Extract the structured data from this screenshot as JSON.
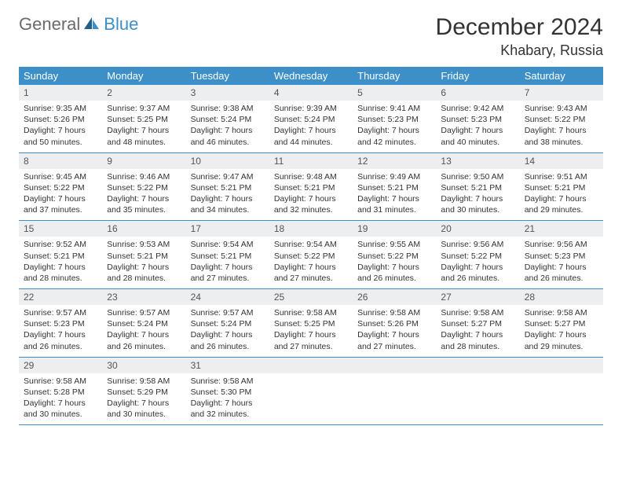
{
  "logo": {
    "word1": "General",
    "word2": "Blue"
  },
  "title": "December 2024",
  "location": "Khabary, Russia",
  "colors": {
    "header_bg": "#3d8fc7",
    "header_text": "#ffffff",
    "daynum_bg": "#eceeef",
    "border": "#3d8fc7",
    "body_bg": "#ffffff",
    "text": "#333333"
  },
  "weekdays": [
    "Sunday",
    "Monday",
    "Tuesday",
    "Wednesday",
    "Thursday",
    "Friday",
    "Saturday"
  ],
  "weeks": [
    [
      {
        "n": "1",
        "sr": "Sunrise: 9:35 AM",
        "ss": "Sunset: 5:26 PM",
        "d1": "Daylight: 7 hours",
        "d2": "and 50 minutes."
      },
      {
        "n": "2",
        "sr": "Sunrise: 9:37 AM",
        "ss": "Sunset: 5:25 PM",
        "d1": "Daylight: 7 hours",
        "d2": "and 48 minutes."
      },
      {
        "n": "3",
        "sr": "Sunrise: 9:38 AM",
        "ss": "Sunset: 5:24 PM",
        "d1": "Daylight: 7 hours",
        "d2": "and 46 minutes."
      },
      {
        "n": "4",
        "sr": "Sunrise: 9:39 AM",
        "ss": "Sunset: 5:24 PM",
        "d1": "Daylight: 7 hours",
        "d2": "and 44 minutes."
      },
      {
        "n": "5",
        "sr": "Sunrise: 9:41 AM",
        "ss": "Sunset: 5:23 PM",
        "d1": "Daylight: 7 hours",
        "d2": "and 42 minutes."
      },
      {
        "n": "6",
        "sr": "Sunrise: 9:42 AM",
        "ss": "Sunset: 5:23 PM",
        "d1": "Daylight: 7 hours",
        "d2": "and 40 minutes."
      },
      {
        "n": "7",
        "sr": "Sunrise: 9:43 AM",
        "ss": "Sunset: 5:22 PM",
        "d1": "Daylight: 7 hours",
        "d2": "and 38 minutes."
      }
    ],
    [
      {
        "n": "8",
        "sr": "Sunrise: 9:45 AM",
        "ss": "Sunset: 5:22 PM",
        "d1": "Daylight: 7 hours",
        "d2": "and 37 minutes."
      },
      {
        "n": "9",
        "sr": "Sunrise: 9:46 AM",
        "ss": "Sunset: 5:22 PM",
        "d1": "Daylight: 7 hours",
        "d2": "and 35 minutes."
      },
      {
        "n": "10",
        "sr": "Sunrise: 9:47 AM",
        "ss": "Sunset: 5:21 PM",
        "d1": "Daylight: 7 hours",
        "d2": "and 34 minutes."
      },
      {
        "n": "11",
        "sr": "Sunrise: 9:48 AM",
        "ss": "Sunset: 5:21 PM",
        "d1": "Daylight: 7 hours",
        "d2": "and 32 minutes."
      },
      {
        "n": "12",
        "sr": "Sunrise: 9:49 AM",
        "ss": "Sunset: 5:21 PM",
        "d1": "Daylight: 7 hours",
        "d2": "and 31 minutes."
      },
      {
        "n": "13",
        "sr": "Sunrise: 9:50 AM",
        "ss": "Sunset: 5:21 PM",
        "d1": "Daylight: 7 hours",
        "d2": "and 30 minutes."
      },
      {
        "n": "14",
        "sr": "Sunrise: 9:51 AM",
        "ss": "Sunset: 5:21 PM",
        "d1": "Daylight: 7 hours",
        "d2": "and 29 minutes."
      }
    ],
    [
      {
        "n": "15",
        "sr": "Sunrise: 9:52 AM",
        "ss": "Sunset: 5:21 PM",
        "d1": "Daylight: 7 hours",
        "d2": "and 28 minutes."
      },
      {
        "n": "16",
        "sr": "Sunrise: 9:53 AM",
        "ss": "Sunset: 5:21 PM",
        "d1": "Daylight: 7 hours",
        "d2": "and 28 minutes."
      },
      {
        "n": "17",
        "sr": "Sunrise: 9:54 AM",
        "ss": "Sunset: 5:21 PM",
        "d1": "Daylight: 7 hours",
        "d2": "and 27 minutes."
      },
      {
        "n": "18",
        "sr": "Sunrise: 9:54 AM",
        "ss": "Sunset: 5:22 PM",
        "d1": "Daylight: 7 hours",
        "d2": "and 27 minutes."
      },
      {
        "n": "19",
        "sr": "Sunrise: 9:55 AM",
        "ss": "Sunset: 5:22 PM",
        "d1": "Daylight: 7 hours",
        "d2": "and 26 minutes."
      },
      {
        "n": "20",
        "sr": "Sunrise: 9:56 AM",
        "ss": "Sunset: 5:22 PM",
        "d1": "Daylight: 7 hours",
        "d2": "and 26 minutes."
      },
      {
        "n": "21",
        "sr": "Sunrise: 9:56 AM",
        "ss": "Sunset: 5:23 PM",
        "d1": "Daylight: 7 hours",
        "d2": "and 26 minutes."
      }
    ],
    [
      {
        "n": "22",
        "sr": "Sunrise: 9:57 AM",
        "ss": "Sunset: 5:23 PM",
        "d1": "Daylight: 7 hours",
        "d2": "and 26 minutes."
      },
      {
        "n": "23",
        "sr": "Sunrise: 9:57 AM",
        "ss": "Sunset: 5:24 PM",
        "d1": "Daylight: 7 hours",
        "d2": "and 26 minutes."
      },
      {
        "n": "24",
        "sr": "Sunrise: 9:57 AM",
        "ss": "Sunset: 5:24 PM",
        "d1": "Daylight: 7 hours",
        "d2": "and 26 minutes."
      },
      {
        "n": "25",
        "sr": "Sunrise: 9:58 AM",
        "ss": "Sunset: 5:25 PM",
        "d1": "Daylight: 7 hours",
        "d2": "and 27 minutes."
      },
      {
        "n": "26",
        "sr": "Sunrise: 9:58 AM",
        "ss": "Sunset: 5:26 PM",
        "d1": "Daylight: 7 hours",
        "d2": "and 27 minutes."
      },
      {
        "n": "27",
        "sr": "Sunrise: 9:58 AM",
        "ss": "Sunset: 5:27 PM",
        "d1": "Daylight: 7 hours",
        "d2": "and 28 minutes."
      },
      {
        "n": "28",
        "sr": "Sunrise: 9:58 AM",
        "ss": "Sunset: 5:27 PM",
        "d1": "Daylight: 7 hours",
        "d2": "and 29 minutes."
      }
    ],
    [
      {
        "n": "29",
        "sr": "Sunrise: 9:58 AM",
        "ss": "Sunset: 5:28 PM",
        "d1": "Daylight: 7 hours",
        "d2": "and 30 minutes."
      },
      {
        "n": "30",
        "sr": "Sunrise: 9:58 AM",
        "ss": "Sunset: 5:29 PM",
        "d1": "Daylight: 7 hours",
        "d2": "and 30 minutes."
      },
      {
        "n": "31",
        "sr": "Sunrise: 9:58 AM",
        "ss": "Sunset: 5:30 PM",
        "d1": "Daylight: 7 hours",
        "d2": "and 32 minutes."
      },
      {
        "empty": true
      },
      {
        "empty": true
      },
      {
        "empty": true
      },
      {
        "empty": true
      }
    ]
  ]
}
